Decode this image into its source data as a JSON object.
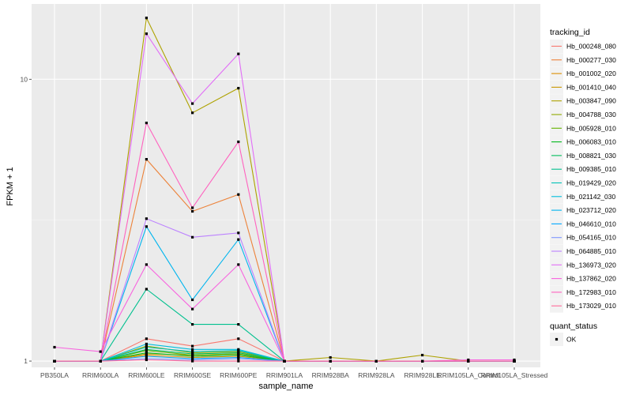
{
  "chart_data": {
    "type": "line",
    "ylabel": "FPKM + 1",
    "xlabel": "sample_name",
    "y_scale": "log10",
    "ylim": [
      0.95,
      18.5
    ],
    "y_ticks": [
      {
        "value": 1,
        "label": "1"
      },
      {
        "value": 10,
        "label": "10"
      }
    ],
    "categories": [
      "PB350LA",
      "RRIM600LA",
      "RRIM600LE",
      "RRIM600SE",
      "RRIM600PE",
      "RRIM901LA",
      "RRIM928BA",
      "RRIM928LA",
      "RRIM928LE",
      "RRIM105LA_Control",
      "RRIM105LA_Stressed"
    ],
    "grid": true,
    "legend": {
      "position": "right",
      "color_title": "tracking_id",
      "shape_title": "quant_status",
      "shape_entries": [
        {
          "label": "OK",
          "symbol": "square"
        }
      ]
    },
    "series": [
      {
        "name": "Hb_000248_080",
        "color": "#F8766D",
        "values": [
          1,
          1,
          1.2,
          1.13,
          1.2,
          1,
          1,
          1,
          1,
          1,
          1
        ]
      },
      {
        "name": "Hb_000277_030",
        "color": "#EC8239",
        "values": [
          1,
          1,
          5.2,
          3.4,
          3.9,
          1,
          1,
          1,
          1,
          1,
          1
        ]
      },
      {
        "name": "Hb_001002_020",
        "color": "#DB8E00",
        "values": [
          1,
          1,
          1.05,
          1.03,
          1.04,
          1,
          1,
          1,
          1,
          1,
          1
        ]
      },
      {
        "name": "Hb_001410_040",
        "color": "#C79800",
        "values": [
          1,
          1,
          1.06,
          1.05,
          1.06,
          1,
          1,
          1,
          1,
          1,
          1
        ]
      },
      {
        "name": "Hb_003847_090",
        "color": "#AEA200",
        "values": [
          1,
          1,
          16.5,
          7.6,
          9.3,
          1,
          1.03,
          1,
          1.05,
          1,
          1
        ]
      },
      {
        "name": "Hb_004788_030",
        "color": "#8FAA00",
        "values": [
          1,
          1,
          1.13,
          1.07,
          1.08,
          1,
          1,
          1,
          1,
          1,
          1
        ]
      },
      {
        "name": "Hb_005928_010",
        "color": "#64B200",
        "values": [
          1,
          1,
          1.09,
          1.05,
          1.06,
          1,
          1,
          1,
          1,
          1,
          1
        ]
      },
      {
        "name": "Hb_006083_010",
        "color": "#00B81B",
        "values": [
          1,
          1,
          1.07,
          1.04,
          1.05,
          1,
          1,
          1,
          1,
          1,
          1
        ]
      },
      {
        "name": "Hb_008821_030",
        "color": "#00BD5C",
        "values": [
          1,
          1,
          1.1,
          1.06,
          1.07,
          1,
          1,
          1,
          1,
          1,
          1
        ]
      },
      {
        "name": "Hb_009385_010",
        "color": "#00C08E",
        "values": [
          1,
          1,
          1.8,
          1.35,
          1.35,
          1,
          1,
          1,
          1,
          1,
          1
        ]
      },
      {
        "name": "Hb_019429_020",
        "color": "#00C1B7",
        "values": [
          1,
          1,
          1.12,
          1.08,
          1.09,
          1,
          1,
          1,
          1,
          1,
          1
        ]
      },
      {
        "name": "Hb_021142_030",
        "color": "#00BDDC",
        "values": [
          1,
          1,
          1.15,
          1.1,
          1.1,
          1,
          1,
          1,
          1,
          1,
          1
        ]
      },
      {
        "name": "Hb_023712_020",
        "color": "#00B5EE",
        "values": [
          1,
          1,
          3.0,
          1.65,
          2.7,
          1,
          1,
          1,
          1,
          1,
          1
        ]
      },
      {
        "name": "Hb_046610_010",
        "color": "#00A7FF",
        "values": [
          1,
          1,
          1.04,
          1.02,
          1.03,
          1,
          1,
          1,
          1,
          1,
          1
        ]
      },
      {
        "name": "Hb_054165_010",
        "color": "#7F96FF",
        "values": [
          1,
          1,
          1.02,
          1.01,
          1.02,
          1,
          1,
          1,
          1,
          1,
          1
        ]
      },
      {
        "name": "Hb_064885_010",
        "color": "#BC81FF",
        "values": [
          1,
          1,
          3.2,
          2.75,
          2.85,
          1,
          1,
          1,
          1,
          1,
          1
        ]
      },
      {
        "name": "Hb_136973_020",
        "color": "#E26EF7",
        "values": [
          1,
          1,
          14.5,
          8.2,
          12.3,
          1,
          1,
          1,
          1,
          1,
          1
        ]
      },
      {
        "name": "Hb_137862_020",
        "color": "#F863DF",
        "values": [
          1.12,
          1.08,
          2.2,
          1.53,
          2.2,
          1,
          1,
          1,
          1,
          1.01,
          1.01
        ]
      },
      {
        "name": "Hb_172983_010",
        "color": "#FF62BF",
        "values": [
          1,
          1,
          7.0,
          3.5,
          6.0,
          1,
          1,
          1,
          1,
          1,
          1
        ]
      },
      {
        "name": "Hb_173029_010",
        "color": "#FF6A9A",
        "values": [
          1,
          1,
          1.01,
          1.0,
          1.0,
          1,
          1,
          1,
          1,
          1,
          1
        ]
      }
    ]
  }
}
